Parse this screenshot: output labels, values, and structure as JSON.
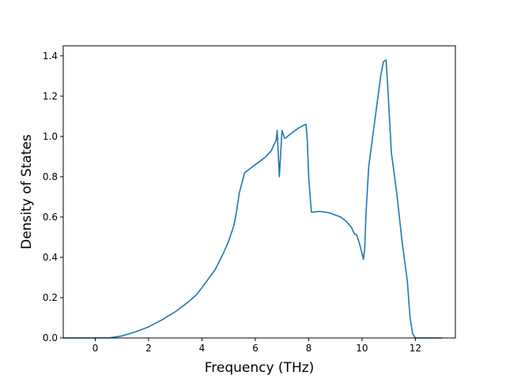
{
  "chart_data": {
    "type": "line",
    "title": "",
    "xlabel": "Frequency (THz)",
    "ylabel": "Density of States",
    "xlim": [
      -1.2,
      13.5
    ],
    "ylim": [
      0.0,
      1.45
    ],
    "xticks": [
      0,
      2,
      4,
      6,
      8,
      10,
      12
    ],
    "xtick_labels": [
      "0",
      "2",
      "4",
      "6",
      "8",
      "10",
      "12"
    ],
    "yticks": [
      0.0,
      0.2,
      0.4,
      0.6,
      0.8,
      1.0,
      1.2,
      1.4
    ],
    "ytick_labels": [
      "0.0",
      "0.2",
      "0.4",
      "0.6",
      "0.8",
      "1.0",
      "1.2",
      "1.4"
    ],
    "grid": false,
    "line_color": "#1f77b4",
    "series": [
      {
        "x": [
          -1.2,
          -0.5,
          0.0,
          0.5,
          1.0,
          1.5,
          2.0,
          2.5,
          3.0,
          3.5,
          3.8,
          4.0,
          4.5,
          4.8,
          5.0,
          5.2,
          5.3,
          5.4,
          5.6,
          5.8,
          6.0,
          6.2,
          6.4,
          6.6,
          6.7,
          6.78,
          6.82,
          6.9,
          7.0,
          7.1,
          7.2,
          7.3,
          7.4,
          7.5,
          7.6,
          7.8,
          7.9,
          7.95,
          8.0,
          8.1,
          8.2,
          8.4,
          8.6,
          8.8,
          9.0,
          9.2,
          9.4,
          9.6,
          9.7,
          9.8,
          9.9,
          10.0,
          10.05,
          10.1,
          10.15,
          10.25,
          10.5,
          10.7,
          10.8,
          10.9,
          10.95,
          11.1,
          11.3,
          11.5,
          11.7,
          11.8,
          11.9,
          12.0,
          12.5,
          13.0
        ],
        "y": [
          0.0,
          0.0,
          0.0,
          0.0,
          0.01,
          0.03,
          0.055,
          0.09,
          0.13,
          0.18,
          0.215,
          0.25,
          0.34,
          0.42,
          0.48,
          0.56,
          0.63,
          0.72,
          0.82,
          0.84,
          0.86,
          0.88,
          0.9,
          0.93,
          0.96,
          0.98,
          1.03,
          0.8,
          1.03,
          0.99,
          1.0,
          1.01,
          1.02,
          1.03,
          1.04,
          1.055,
          1.06,
          0.98,
          0.8,
          0.625,
          0.625,
          0.628,
          0.625,
          0.62,
          0.61,
          0.6,
          0.58,
          0.55,
          0.52,
          0.51,
          0.47,
          0.42,
          0.39,
          0.44,
          0.62,
          0.85,
          1.1,
          1.3,
          1.37,
          1.38,
          1.28,
          0.92,
          0.72,
          0.48,
          0.28,
          0.1,
          0.02,
          0.0,
          0.0,
          0.0
        ]
      }
    ]
  }
}
